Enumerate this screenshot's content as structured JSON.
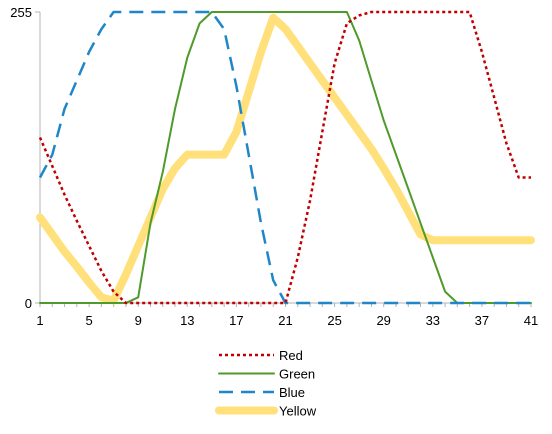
{
  "chart_data": {
    "type": "line",
    "x": [
      1,
      2,
      3,
      4,
      5,
      6,
      7,
      8,
      9,
      10,
      11,
      12,
      13,
      14,
      15,
      16,
      17,
      18,
      19,
      20,
      21,
      22,
      23,
      24,
      25,
      26,
      27,
      28,
      29,
      30,
      31,
      32,
      33,
      34,
      35,
      36,
      37,
      38,
      39,
      40,
      41
    ],
    "x_tick_labels": [
      "1",
      "5",
      "9",
      "13",
      "17",
      "21",
      "25",
      "29",
      "33",
      "37",
      "41"
    ],
    "y_tick_labels": [
      "0",
      "255"
    ],
    "ylim": [
      0,
      255
    ],
    "grid": false,
    "legend_position": "bottom",
    "series": [
      {
        "name": "Red",
        "color": "#c00000",
        "style": "dotted",
        "values": [
          145,
          120,
          95,
          72,
          50,
          28,
          10,
          0,
          0,
          0,
          0,
          0,
          0,
          0,
          0,
          0,
          0,
          0,
          0,
          0,
          0,
          40,
          90,
          150,
          210,
          245,
          252,
          255,
          255,
          255,
          255,
          255,
          255,
          255,
          255,
          255,
          220,
          180,
          140,
          110,
          110
        ]
      },
      {
        "name": "Green",
        "color": "#4e9a2a",
        "style": "solid",
        "values": [
          0,
          0,
          0,
          0,
          0,
          0,
          0,
          0,
          5,
          70,
          115,
          170,
          215,
          245,
          255,
          255,
          255,
          255,
          255,
          255,
          255,
          255,
          255,
          255,
          255,
          255,
          230,
          195,
          160,
          130,
          100,
          70,
          40,
          10,
          0,
          0,
          0,
          0,
          0,
          0,
          0
        ]
      },
      {
        "name": "Blue",
        "color": "#1f86c8",
        "style": "dashed",
        "values": [
          110,
          130,
          170,
          195,
          220,
          240,
          255,
          255,
          255,
          255,
          255,
          255,
          255,
          255,
          255,
          240,
          190,
          130,
          70,
          20,
          0,
          0,
          0,
          0,
          0,
          0,
          0,
          0,
          0,
          0,
          0,
          0,
          0,
          0,
          0,
          0,
          0,
          0,
          0,
          0,
          0
        ]
      },
      {
        "name": "Yellow",
        "color": "#ffe07a",
        "style": "thick",
        "values": [
          75,
          60,
          45,
          32,
          18,
          5,
          2,
          25,
          50,
          75,
          100,
          118,
          130,
          130,
          130,
          130,
          150,
          185,
          220,
          250,
          240,
          225,
          210,
          195,
          180,
          165,
          150,
          135,
          118,
          100,
          80,
          60,
          55,
          55,
          55,
          55,
          55,
          55,
          55,
          55,
          55
        ]
      }
    ]
  }
}
